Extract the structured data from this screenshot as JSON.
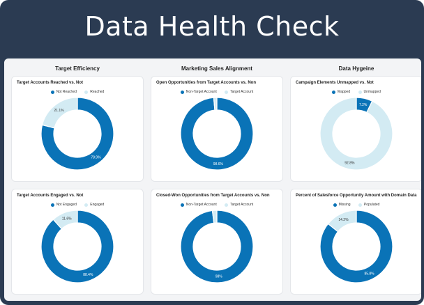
{
  "title": "Data Health Check",
  "colors": {
    "dark": "#0a73b7",
    "light": "#d3ebf3"
  },
  "columns": [
    "Target Efficiency",
    "Marketing Sales Alignment",
    "Data Hygeine"
  ],
  "charts": [
    {
      "title": "Target Accounts Reached vs. Not",
      "legend": [
        "Not Reached",
        "Reached"
      ],
      "values": [
        78.9,
        21.1
      ],
      "labels": [
        "78.9%",
        "21.1%"
      ]
    },
    {
      "title": "Open Opportunities from Target Accounts vs. Non",
      "legend": [
        "Non-Target Account",
        "Target Account"
      ],
      "values": [
        98.6,
        1.4
      ],
      "labels": [
        "98.6%",
        ""
      ]
    },
    {
      "title": "Campaign Elements Unmapped vs. Not",
      "legend": [
        "Mapped",
        "Unmapped"
      ],
      "values": [
        7.2,
        92.8
      ],
      "labels": [
        "7.2%",
        "92.8%"
      ]
    },
    {
      "title": "Target Accounts Engaged vs. Not",
      "legend": [
        "Not Engaged",
        "Engaged"
      ],
      "values": [
        88.4,
        11.6
      ],
      "labels": [
        "88.4%",
        "11.6%"
      ]
    },
    {
      "title": "Closed-Won Opportunities from Target Accounts vs. Non",
      "legend": [
        "Non-Target Account",
        "Target Account"
      ],
      "values": [
        98,
        2
      ],
      "labels": [
        "98%",
        ""
      ]
    },
    {
      "title": "Percent of Salesforce Opportunity Amount with Domain Data",
      "legend": [
        "Missing",
        "Populated"
      ],
      "values": [
        85.8,
        14.2
      ],
      "labels": [
        "85.8%",
        "14.2%"
      ]
    }
  ],
  "chart_data": [
    {
      "type": "pie",
      "title": "Target Accounts Reached vs. Not",
      "categories": [
        "Not Reached",
        "Reached"
      ],
      "values": [
        78.9,
        21.1
      ]
    },
    {
      "type": "pie",
      "title": "Open Opportunities from Target Accounts vs. Non",
      "categories": [
        "Non-Target Account",
        "Target Account"
      ],
      "values": [
        98.6,
        1.4
      ]
    },
    {
      "type": "pie",
      "title": "Campaign Elements Unmapped vs. Not",
      "categories": [
        "Mapped",
        "Unmapped"
      ],
      "values": [
        7.2,
        92.8
      ]
    },
    {
      "type": "pie",
      "title": "Target Accounts Engaged vs. Not",
      "categories": [
        "Not Engaged",
        "Engaged"
      ],
      "values": [
        88.4,
        11.6
      ]
    },
    {
      "type": "pie",
      "title": "Closed-Won Opportunities from Target Accounts vs. Non",
      "categories": [
        "Non-Target Account",
        "Target Account"
      ],
      "values": [
        98,
        2
      ]
    },
    {
      "type": "pie",
      "title": "Percent of Salesforce Opportunity Amount with Domain Data",
      "categories": [
        "Missing",
        "Populated"
      ],
      "values": [
        85.8,
        14.2
      ]
    }
  ]
}
